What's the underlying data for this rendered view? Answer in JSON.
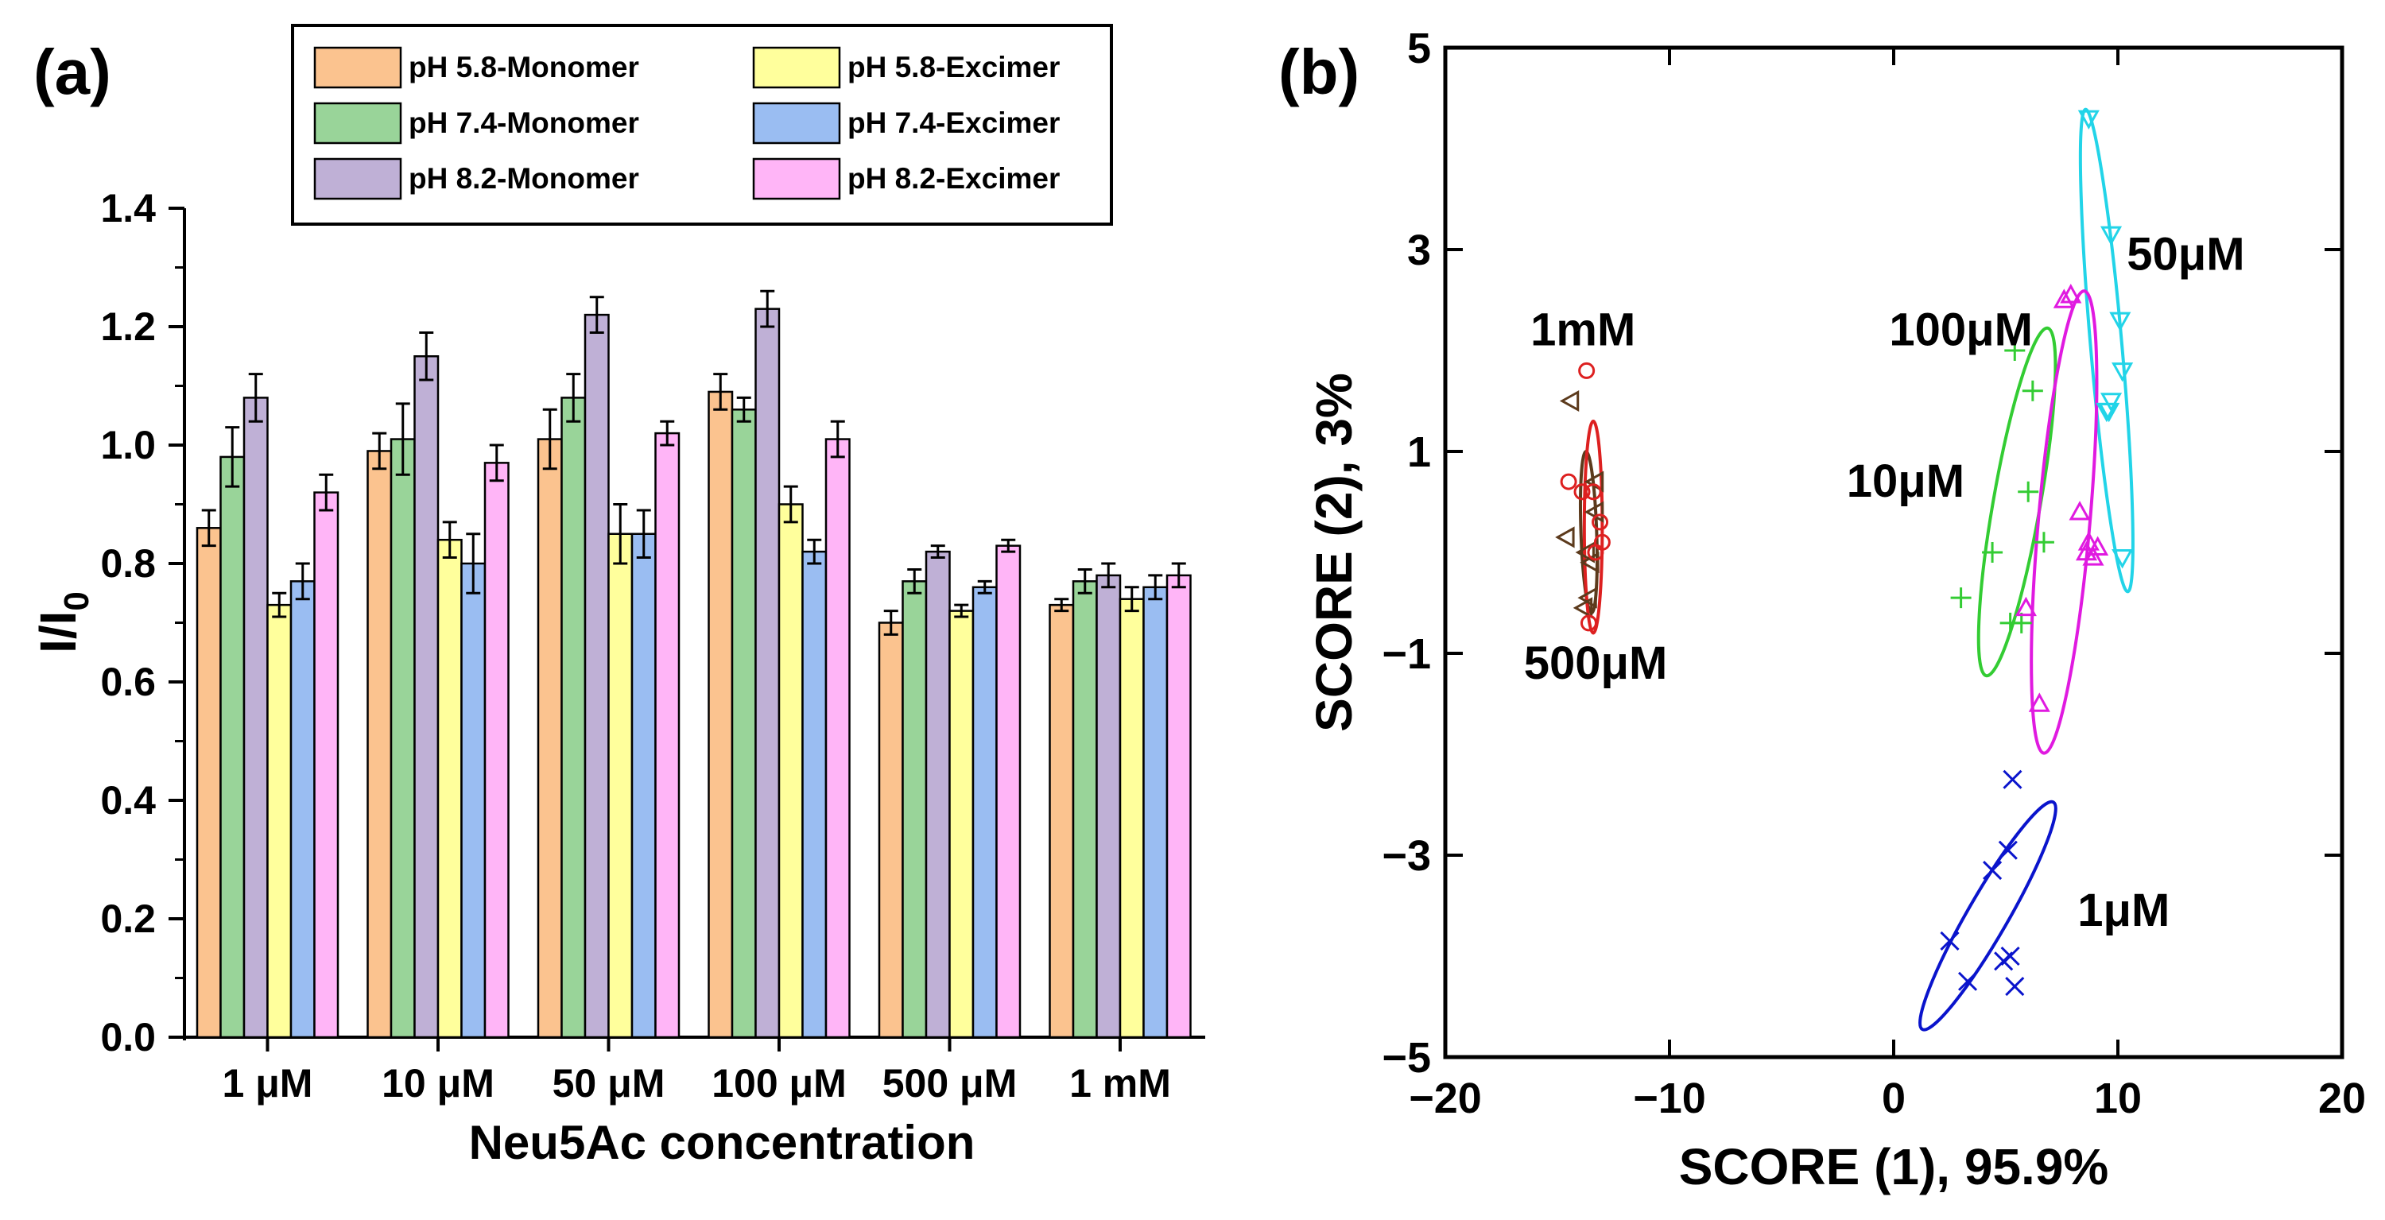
{
  "chart_data": [
    {
      "type": "bar",
      "panel_label": "(a)",
      "title": "",
      "xlabel": "Neu5Ac concentration",
      "ylabel": "I/I",
      "ylabel_subscript": "0",
      "ylim": [
        0,
        1.4
      ],
      "y_ticks": [
        "0.0",
        "0.2",
        "0.4",
        "0.6",
        "0.8",
        "1.0",
        "1.2",
        "1.4"
      ],
      "categories": [
        "1 μM",
        "10 μM",
        "50 μM",
        "100 μM",
        "500 μM",
        "1 mM"
      ],
      "legend_position": "top",
      "series": [
        {
          "name": "pH 5.8-Monomer",
          "color": "#FBC38F",
          "values": [
            0.86,
            0.99,
            1.01,
            1.09,
            0.7,
            0.73
          ],
          "errors": [
            0.03,
            0.03,
            0.05,
            0.03,
            0.02,
            0.01
          ]
        },
        {
          "name": "pH 7.4-Monomer",
          "color": "#99D499",
          "values": [
            0.98,
            1.01,
            1.08,
            1.06,
            0.77,
            0.77
          ],
          "errors": [
            0.05,
            0.06,
            0.04,
            0.02,
            0.02,
            0.02
          ]
        },
        {
          "name": "pH 8.2-Monomer",
          "color": "#BFB0D6",
          "values": [
            1.08,
            1.15,
            1.22,
            1.23,
            0.82,
            0.78
          ],
          "errors": [
            0.04,
            0.04,
            0.03,
            0.03,
            0.01,
            0.02
          ]
        },
        {
          "name": "pH 5.8-Excimer",
          "color": "#FFFF9C",
          "values": [
            0.73,
            0.84,
            0.85,
            0.9,
            0.72,
            0.74
          ],
          "errors": [
            0.02,
            0.03,
            0.05,
            0.03,
            0.01,
            0.02
          ]
        },
        {
          "name": "pH 7.4-Excimer",
          "color": "#9ABDF2",
          "values": [
            0.77,
            0.8,
            0.85,
            0.82,
            0.76,
            0.76
          ],
          "errors": [
            0.03,
            0.05,
            0.04,
            0.02,
            0.01,
            0.02
          ]
        },
        {
          "name": "pH 8.2-Excimer",
          "color": "#FFB5F7",
          "values": [
            0.92,
            0.97,
            1.02,
            1.01,
            0.83,
            0.78
          ],
          "errors": [
            0.03,
            0.03,
            0.02,
            0.03,
            0.01,
            0.02
          ]
        }
      ]
    },
    {
      "type": "scatter",
      "panel_label": "(b)",
      "title": "",
      "xlabel": "SCORE (1), 95.9%",
      "ylabel": "SCORE (2), 3%",
      "xlim": [
        -20,
        20
      ],
      "ylim": [
        -5,
        5
      ],
      "x_ticks": [
        {
          "v": -20,
          "label": "−20"
        },
        {
          "v": -10,
          "label": "−10"
        },
        {
          "v": 0,
          "label": "0"
        },
        {
          "v": 10,
          "label": "10"
        },
        {
          "v": 20,
          "label": "20"
        }
      ],
      "y_ticks": [
        {
          "v": -5,
          "label": "−5"
        },
        {
          "v": -3,
          "label": "−3"
        },
        {
          "v": -1,
          "label": "−1"
        },
        {
          "v": 1,
          "label": "1"
        },
        {
          "v": 3,
          "label": "3"
        },
        {
          "v": 5,
          "label": "5"
        }
      ],
      "series": [
        {
          "name": "1μM",
          "marker": "x",
          "color": "#0A14CC",
          "points": [
            [
              5.3,
              -2.25
            ],
            [
              4.4,
              -3.15
            ],
            [
              5.1,
              -2.95
            ],
            [
              2.5,
              -3.85
            ],
            [
              3.3,
              -4.25
            ],
            [
              4.9,
              -4.05
            ],
            [
              5.2,
              -4.0
            ],
            [
              5.4,
              -4.3
            ]
          ],
          "ellipse": {
            "cx": 4.2,
            "cy": -3.6,
            "rx": 1.3,
            "ry": 0.9,
            "angle": 60
          },
          "label": "1μM",
          "label_pos": [
            8.2,
            -3.7
          ]
        },
        {
          "name": "10μM",
          "marker": "plus",
          "color": "#33CC33",
          "points": [
            [
              5.4,
              2.0
            ],
            [
              6.2,
              1.6
            ],
            [
              6.0,
              0.6
            ],
            [
              4.4,
              0.0
            ],
            [
              6.7,
              0.1
            ],
            [
              3.0,
              -0.45
            ],
            [
              5.7,
              -0.7
            ],
            [
              5.2,
              -0.7
            ]
          ],
          "ellipse": {
            "cx": 5.5,
            "cy": 0.5,
            "rx": 1.75,
            "ry": 1.05,
            "angle": 80
          },
          "label": "10μM",
          "label_pos": [
            -2.1,
            0.55
          ]
        },
        {
          "name": "50μM",
          "marker": "triangle-down",
          "color": "#22D4E8",
          "points": [
            [
              8.7,
              4.3
            ],
            [
              9.7,
              3.15
            ],
            [
              10.1,
              2.3
            ],
            [
              10.2,
              1.8
            ],
            [
              9.7,
              1.5
            ],
            [
              9.6,
              1.4
            ],
            [
              9.5,
              1.4
            ],
            [
              10.2,
              -0.05
            ]
          ],
          "ellipse": {
            "cx": 9.5,
            "cy": 2.0,
            "rx": 2.4,
            "ry": 0.7,
            "angle": 95
          },
          "label": "50μM",
          "label_pos": [
            10.4,
            2.8
          ]
        },
        {
          "name": "100μM",
          "marker": "triangle-up",
          "color": "#E01AE0",
          "points": [
            [
              7.6,
              2.5
            ],
            [
              7.9,
              2.55
            ],
            [
              8.3,
              0.4
            ],
            [
              8.6,
              0.0
            ],
            [
              8.9,
              -0.05
            ],
            [
              9.1,
              0.05
            ],
            [
              8.7,
              0.1
            ],
            [
              5.9,
              -0.55
            ],
            [
              6.5,
              -1.5
            ]
          ],
          "ellipse": {
            "cx": 7.6,
            "cy": 0.3,
            "rx": 2.3,
            "ry": 1.15,
            "angle": 85
          },
          "label": "100μM",
          "label_pos": [
            -0.2,
            2.05
          ]
        },
        {
          "name": "500μM",
          "marker": "triangle-left",
          "color": "#5C3A1C",
          "points": [
            [
              -14.4,
              1.5
            ],
            [
              -13.3,
              0.7
            ],
            [
              -13.3,
              0.4
            ],
            [
              -14.6,
              0.15
            ],
            [
              -13.7,
              0.0
            ],
            [
              -13.5,
              -0.1
            ],
            [
              -13.6,
              -0.45
            ],
            [
              -13.8,
              -0.55
            ]
          ],
          "ellipse": {
            "cx": -13.6,
            "cy": 0.2,
            "rx": 0.8,
            "ry": 0.35,
            "angle": 92
          },
          "label": "500μM",
          "label_pos": [
            -16.5,
            -1.25
          ]
        },
        {
          "name": "1mM",
          "marker": "circle",
          "color": "#DD2020",
          "points": [
            [
              -13.7,
              1.8
            ],
            [
              -14.5,
              0.7
            ],
            [
              -13.4,
              0.6
            ],
            [
              -13.9,
              0.6
            ],
            [
              -13.1,
              0.3
            ],
            [
              -13.0,
              0.1
            ],
            [
              -13.3,
              0.0
            ],
            [
              -13.6,
              -0.7
            ]
          ],
          "ellipse": {
            "cx": -13.4,
            "cy": 0.25,
            "rx": 1.05,
            "ry": 0.4,
            "angle": 90
          },
          "label": "1mM",
          "label_pos": [
            -16.2,
            2.05
          ]
        }
      ]
    }
  ]
}
